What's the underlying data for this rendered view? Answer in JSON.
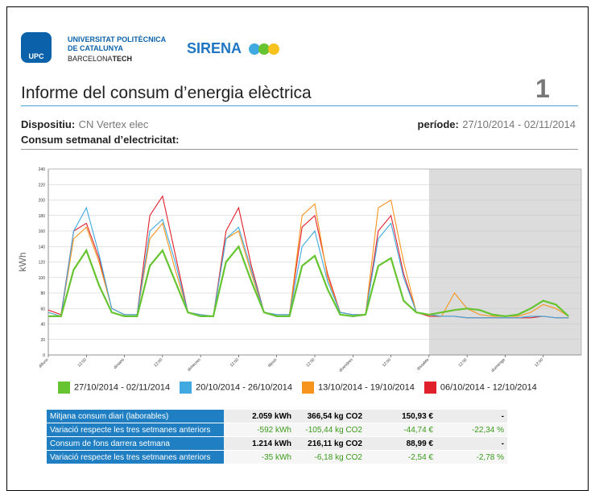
{
  "header": {
    "logo": "UPC",
    "university": [
      "UNIVERSITAT POLITÈCNICA",
      "DE CATALUNYA"
    ],
    "campus": "BARCELONA",
    "campus_bold": "TECH",
    "brand": "SIRENA"
  },
  "report": {
    "title": "Informe del consum d’energia elèctrica",
    "page": "1",
    "device_label": "Dispositiu:",
    "device": "CN Vertex elec",
    "period_label": "període:",
    "period": "27/10/2014 - 02/11/2014",
    "section": "Consum setmanal d’electricitat:"
  },
  "chart_data": {
    "type": "line",
    "ylabel": "kWh",
    "ylim": [
      0,
      240
    ],
    "yticks": [
      0,
      20,
      40,
      60,
      80,
      100,
      120,
      140,
      160,
      180,
      200,
      220,
      240
    ],
    "grid": true,
    "categories": [
      "dilluns",
      null,
      null,
      "12:00",
      null,
      null,
      "dimarts",
      null,
      null,
      "12:00",
      null,
      null,
      "dimecres",
      null,
      null,
      "12:00",
      null,
      null,
      "dijous",
      null,
      null,
      "12:00",
      null,
      null,
      "divendres",
      null,
      null,
      "12:00",
      null,
      null,
      "dissabte",
      null,
      null,
      "12:00",
      null,
      null,
      "diumenge",
      null,
      null,
      "12:00",
      null,
      null
    ],
    "series": [
      {
        "name": "27/10/2014 - 02/11/2014",
        "color": "#66c430",
        "values": [
          50,
          50,
          110,
          135,
          90,
          55,
          50,
          50,
          115,
          135,
          95,
          55,
          50,
          50,
          120,
          140,
          95,
          55,
          50,
          50,
          115,
          128,
          85,
          52,
          50,
          52,
          115,
          125,
          70,
          55,
          52,
          55,
          58,
          60,
          58,
          52,
          50,
          52,
          60,
          70,
          65,
          50
        ]
      },
      {
        "name": "20/10/2014 - 26/10/2014",
        "color": "#3fa9e0",
        "values": [
          55,
          50,
          160,
          190,
          130,
          60,
          52,
          52,
          160,
          175,
          120,
          55,
          52,
          50,
          150,
          165,
          110,
          55,
          52,
          52,
          140,
          160,
          95,
          55,
          52,
          52,
          150,
          170,
          100,
          55,
          52,
          50,
          50,
          48,
          48,
          48,
          48,
          48,
          50,
          50,
          48,
          48
        ]
      },
      {
        "name": "13/10/2014 - 19/10/2014",
        "color": "#f7941d",
        "values": [
          55,
          50,
          150,
          165,
          120,
          60,
          52,
          52,
          150,
          170,
          110,
          55,
          52,
          50,
          150,
          160,
          105,
          55,
          52,
          52,
          180,
          195,
          100,
          55,
          52,
          52,
          190,
          200,
          120,
          55,
          52,
          50,
          80,
          60,
          52,
          50,
          50,
          50,
          55,
          65,
          60,
          50
        ]
      },
      {
        "name": "06/10/2014 - 12/10/2014",
        "color": "#e0202a",
        "values": [
          58,
          52,
          160,
          170,
          125,
          60,
          52,
          52,
          180,
          205,
          130,
          55,
          52,
          50,
          160,
          190,
          115,
          55,
          52,
          52,
          165,
          180,
          105,
          55,
          52,
          52,
          160,
          180,
          105,
          55,
          50,
          50,
          50,
          48,
          48,
          48,
          48,
          48,
          48,
          50,
          48,
          48
        ]
      }
    ]
  },
  "table": {
    "rows": [
      [
        "Mitjana consum diari (laborables)",
        "2.059 kWh",
        "366,54 kg CO2",
        "150,93 €",
        "-"
      ],
      [
        "Variació respecte les tres setmanes anteriors",
        "-592 kWh",
        "-105,44 kg CO2",
        "-44,74 €",
        "-22,34 %"
      ],
      [
        "Consum de fons darrera setmana",
        "1.214 kWh",
        "216,11 kg CO2",
        "88,99 €",
        "-"
      ],
      [
        "Variació respecte les tres setmanes anteriors",
        "-35 kWh",
        "-6,18 kg CO2",
        "-2,54 €",
        "-2,78 %"
      ]
    ]
  }
}
